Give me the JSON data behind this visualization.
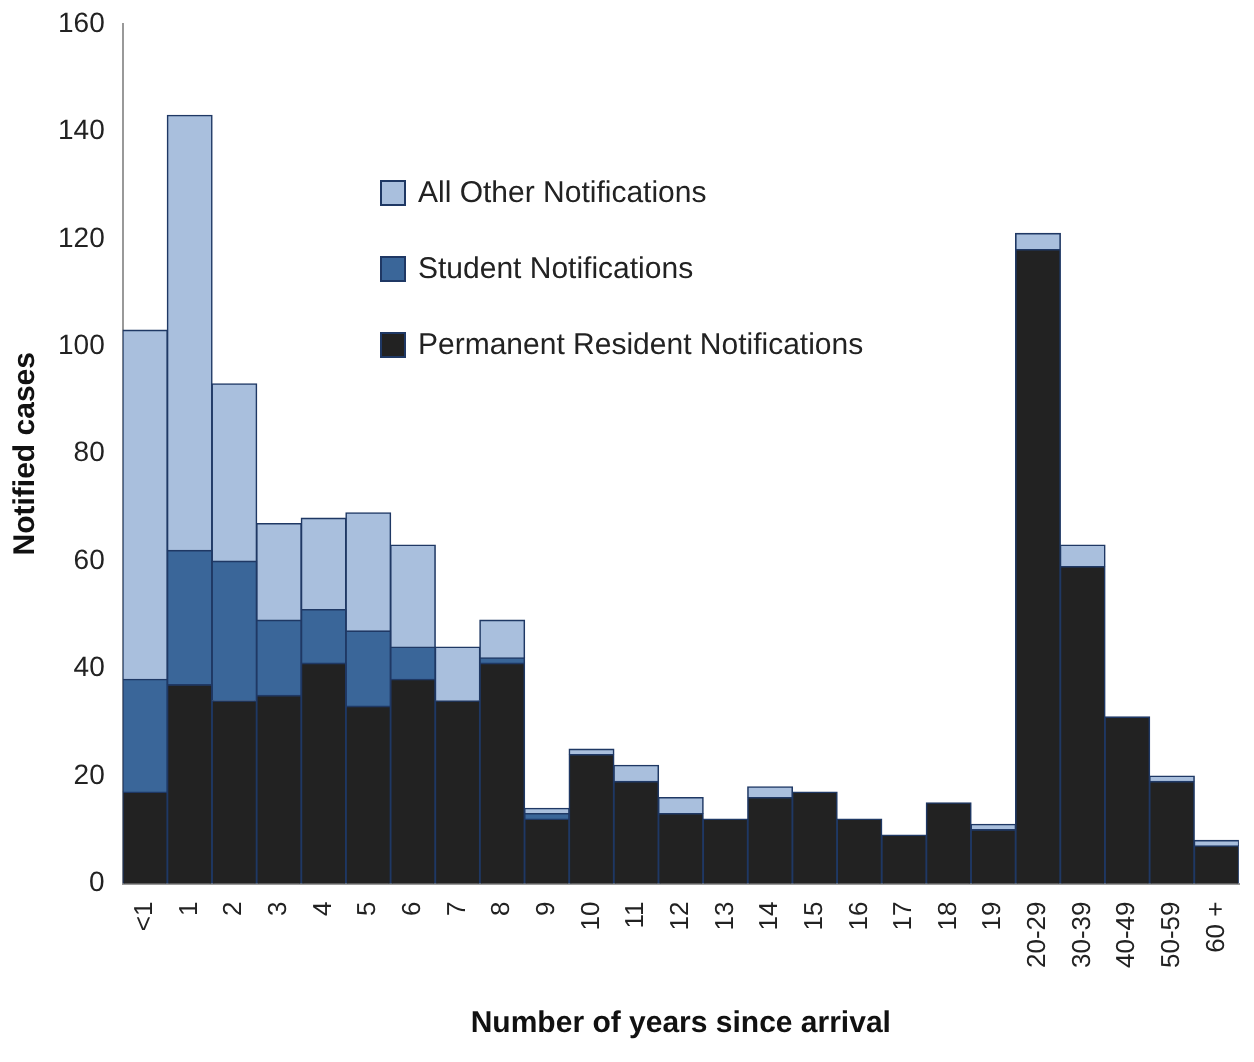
{
  "chart_data": {
    "type": "bar",
    "stacked": true,
    "xlabel": "Number of years since arrival",
    "ylabel": "Notified cases",
    "categories": [
      "<1",
      "1",
      "2",
      "3",
      "4",
      "5",
      "6",
      "7",
      "8",
      "9",
      "10",
      "11",
      "12",
      "13",
      "14",
      "15",
      "16",
      "17",
      "18",
      "19",
      "20-29",
      "30-39",
      "40-49",
      "50-59",
      "60 +"
    ],
    "series": [
      {
        "name": "Permanent Resident Notifications",
        "color": "#222222",
        "values": [
          17,
          37,
          34,
          35,
          41,
          33,
          38,
          34,
          41,
          12,
          24,
          19,
          13,
          12,
          16,
          17,
          12,
          9,
          15,
          10,
          118,
          59,
          31,
          19,
          7
        ]
      },
      {
        "name": "Student Notifications",
        "color": "#3a6699",
        "values": [
          21,
          25,
          26,
          14,
          10,
          14,
          6,
          0,
          1,
          1,
          0,
          0,
          0,
          0,
          0,
          0,
          0,
          0,
          0,
          0,
          0,
          0,
          0,
          0,
          0
        ]
      },
      {
        "name": "All Other Notifications",
        "color": "#a9bfdd",
        "values": [
          65,
          81,
          33,
          18,
          17,
          22,
          19,
          10,
          7,
          1,
          1,
          3,
          3,
          0,
          2,
          0,
          0,
          0,
          0,
          1,
          3,
          4,
          0,
          1,
          1
        ]
      }
    ],
    "ylim": [
      0,
      160
    ],
    "yticks": [
      0,
      20,
      40,
      60,
      80,
      100,
      120,
      140,
      160
    ],
    "grid": false,
    "legend": "top"
  }
}
